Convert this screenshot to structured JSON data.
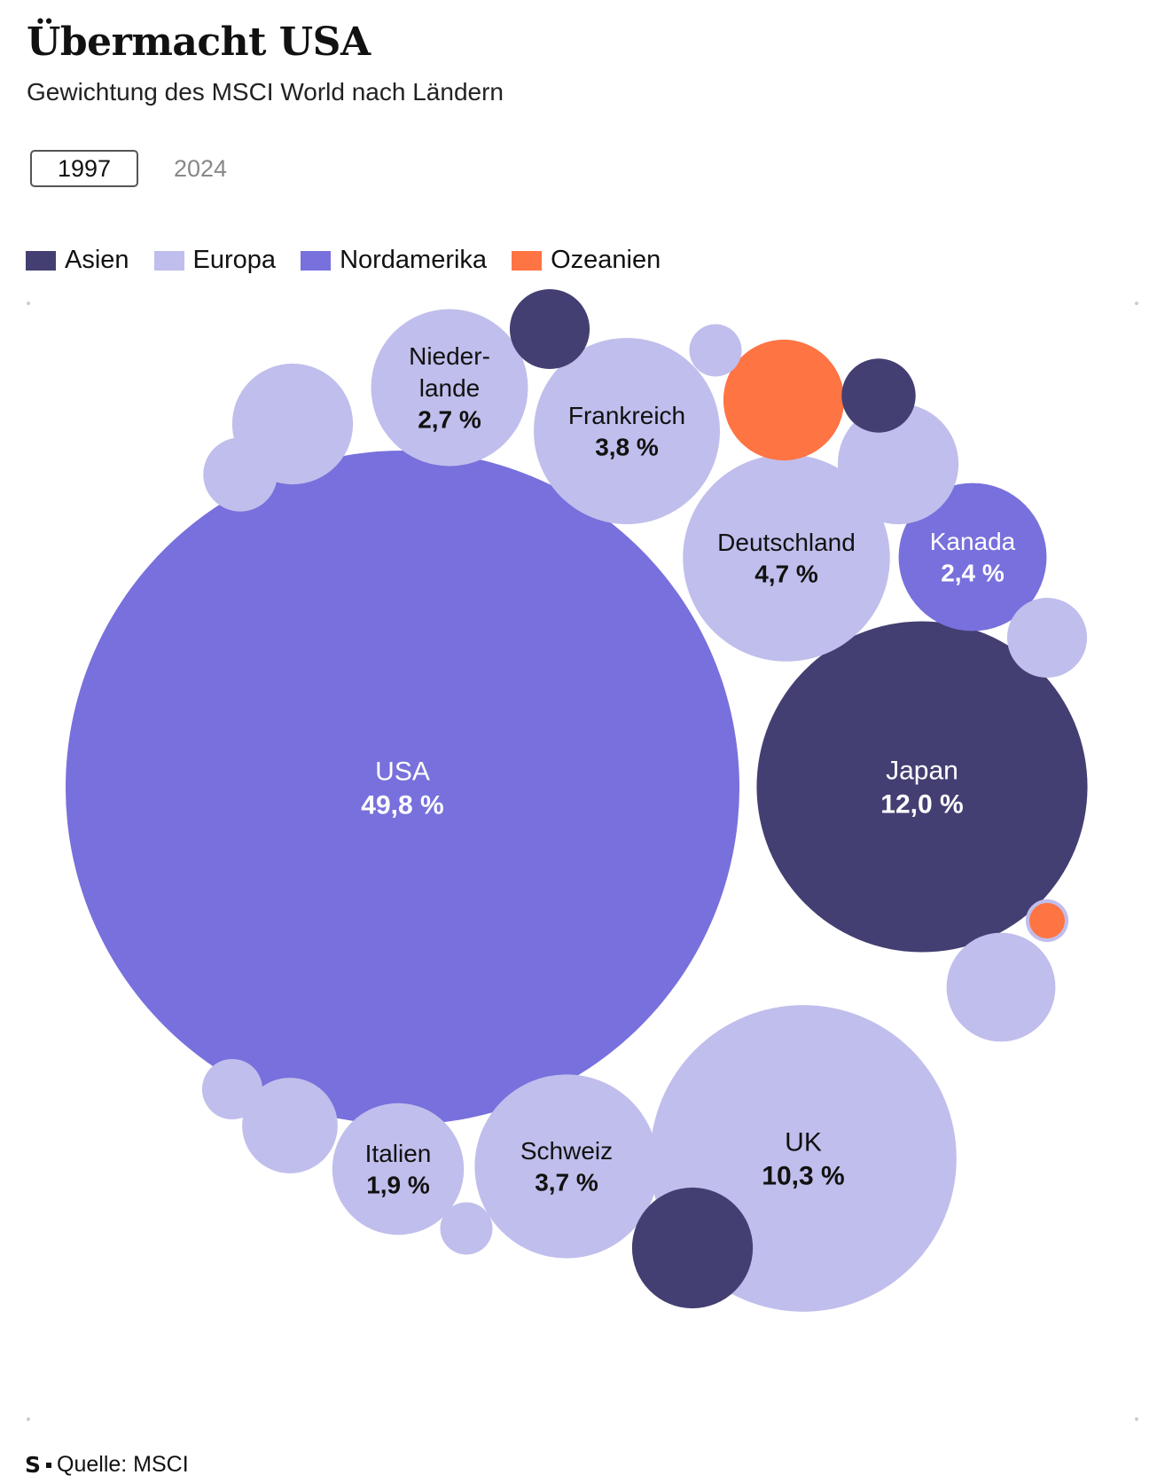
{
  "title": "Übermacht USA",
  "subtitle": "Gewichtung des MSCI World nach Ländern",
  "toggle": {
    "active": "1997",
    "inactive": "2024"
  },
  "legend": [
    {
      "label": "Asien",
      "color": "#433f72"
    },
    {
      "label": "Europa",
      "color": "#c0beec"
    },
    {
      "label": "Nordamerika",
      "color": "#7870dc"
    },
    {
      "label": "Ozeanien",
      "color": "#ff7443"
    }
  ],
  "footer": {
    "logo": "S",
    "source": "Quelle: MSCI"
  },
  "chart_data": {
    "type": "bubble",
    "year": "1997",
    "unit": "%",
    "bubbles": [
      {
        "name": "USA",
        "value": 49.8,
        "value_label": "49,8 %",
        "region": "Nordamerika"
      },
      {
        "name": "Japan",
        "value": 12.0,
        "value_label": "12,0 %",
        "region": "Asien"
      },
      {
        "name": "UK",
        "value": 10.3,
        "value_label": "10,3 %",
        "region": "Europa"
      },
      {
        "name": "Deutschland",
        "value": 4.7,
        "value_label": "4,7 %",
        "region": "Europa"
      },
      {
        "name": "Frankreich",
        "value": 3.8,
        "value_label": "3,8 %",
        "region": "Europa"
      },
      {
        "name": "Schweiz",
        "value": 3.7,
        "value_label": "3,7 %",
        "region": "Europa"
      },
      {
        "name": "Nieder-lande",
        "value": 2.7,
        "value_label": "2,7 %",
        "region": "Europa"
      },
      {
        "name": "Kanada",
        "value": 2.4,
        "value_label": "2,4 %",
        "region": "Nordamerika"
      },
      {
        "name": "Italien",
        "value": 1.9,
        "value_label": "1,9 %",
        "region": "Europa"
      },
      {
        "name": "",
        "value": 1.6,
        "region": "Ozeanien"
      },
      {
        "name": "",
        "value": 1.6,
        "region": "Europa"
      },
      {
        "name": "",
        "value": 1.6,
        "region": "Europa"
      },
      {
        "name": "",
        "value": 1.6,
        "region": "Asien"
      },
      {
        "name": "",
        "value": 1.3,
        "region": "Europa"
      },
      {
        "name": "",
        "value": 1.0,
        "region": "Europa"
      },
      {
        "name": "",
        "value": 0.7,
        "region": "Asien"
      },
      {
        "name": "",
        "value": 0.6,
        "region": "Asien"
      },
      {
        "name": "",
        "value": 0.7,
        "region": "Europa"
      },
      {
        "name": "",
        "value": 0.6,
        "region": "Europa"
      },
      {
        "name": "",
        "value": 0.4,
        "region": "Europa"
      },
      {
        "name": "",
        "value": 0.3,
        "region": "Europa"
      },
      {
        "name": "",
        "value": 0.3,
        "region": "Europa"
      },
      {
        "name": "",
        "value": 0.2,
        "region": "Europa"
      },
      {
        "name": "",
        "value": 0.2,
        "region": "Europa"
      },
      {
        "name": "",
        "value": 0.1,
        "region": "Ozeanien"
      }
    ]
  }
}
